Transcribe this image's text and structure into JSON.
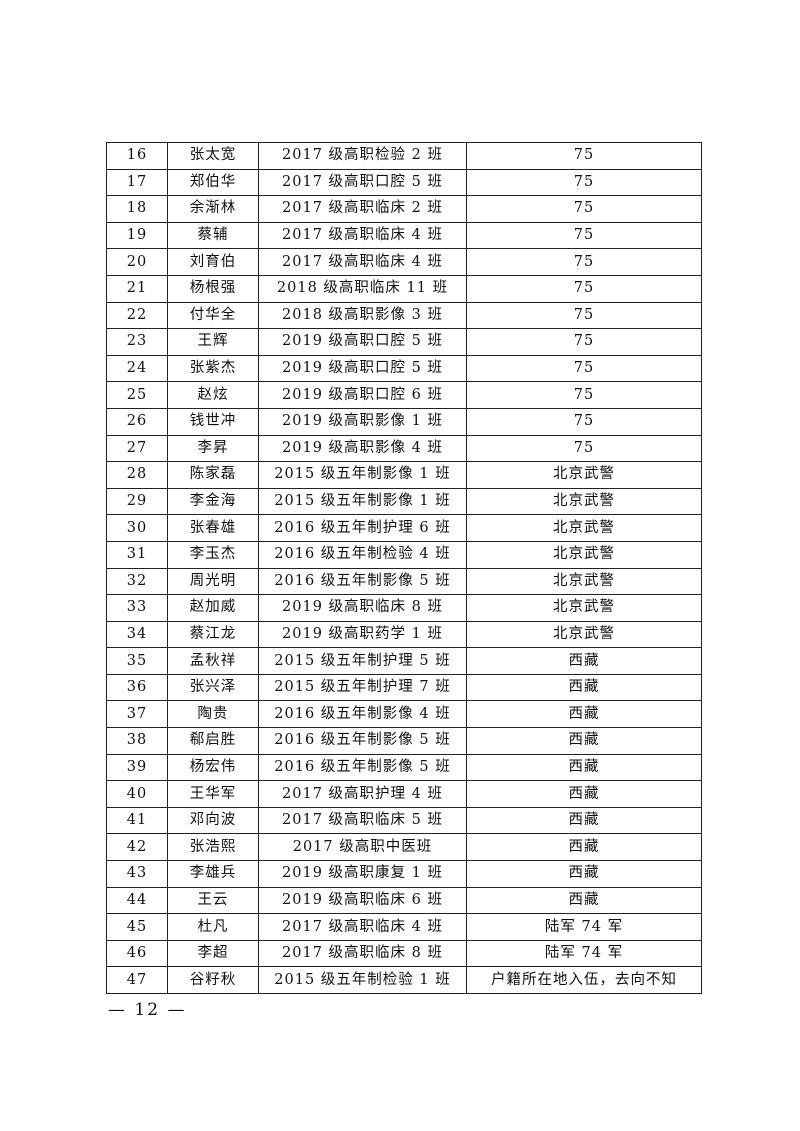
{
  "table": {
    "rows": [
      [
        "16",
        "张太宽",
        "2017 级高职检验 2 班",
        "75"
      ],
      [
        "17",
        "郑伯华",
        "2017 级高职口腔 5 班",
        "75"
      ],
      [
        "18",
        "余渐林",
        "2017 级高职临床 2 班",
        "75"
      ],
      [
        "19",
        "蔡辅",
        "2017 级高职临床 4 班",
        "75"
      ],
      [
        "20",
        "刘育伯",
        "2017 级高职临床 4 班",
        "75"
      ],
      [
        "21",
        "杨根强",
        "2018 级高职临床 11 班",
        "75"
      ],
      [
        "22",
        "付华全",
        "2018 级高职影像 3 班",
        "75"
      ],
      [
        "23",
        "王辉",
        "2019 级高职口腔 5 班",
        "75"
      ],
      [
        "24",
        "张紫杰",
        "2019 级高职口腔 5 班",
        "75"
      ],
      [
        "25",
        "赵炫",
        "2019 级高职口腔 6 班",
        "75"
      ],
      [
        "26",
        "钱世冲",
        "2019 级高职影像 1 班",
        "75"
      ],
      [
        "27",
        "李昇",
        "2019 级高职影像 4 班",
        "75"
      ],
      [
        "28",
        "陈家磊",
        "2015 级五年制影像 1 班",
        "北京武警"
      ],
      [
        "29",
        "李金海",
        "2015 级五年制影像 1 班",
        "北京武警"
      ],
      [
        "30",
        "张春雄",
        "2016 级五年制护理 6 班",
        "北京武警"
      ],
      [
        "31",
        "李玉杰",
        "2016 级五年制检验 4 班",
        "北京武警"
      ],
      [
        "32",
        "周光明",
        "2016 级五年制影像 5 班",
        "北京武警"
      ],
      [
        "33",
        "赵加威",
        "2019 级高职临床 8 班",
        "北京武警"
      ],
      [
        "34",
        "蔡江龙",
        "2019 级高职药学 1 班",
        "北京武警"
      ],
      [
        "35",
        "孟秋祥",
        "2015 级五年制护理 5 班",
        "西藏"
      ],
      [
        "36",
        "张兴泽",
        "2015 级五年制护理 7 班",
        "西藏"
      ],
      [
        "37",
        "陶贵",
        "2016 级五年制影像 4 班",
        "西藏"
      ],
      [
        "38",
        "郗启胜",
        "2016 级五年制影像 5 班",
        "西藏"
      ],
      [
        "39",
        "杨宏伟",
        "2016 级五年制影像 5 班",
        "西藏"
      ],
      [
        "40",
        "王华军",
        "2017 级高职护理 4 班",
        "西藏"
      ],
      [
        "41",
        "邓向波",
        "2017 级高职临床 5 班",
        "西藏"
      ],
      [
        "42",
        "张浩熙",
        "2017 级高职中医班",
        "西藏"
      ],
      [
        "43",
        "李雄兵",
        "2019 级高职康复 1 班",
        "西藏"
      ],
      [
        "44",
        "王云",
        "2019 级高职临床 6 班",
        "西藏"
      ],
      [
        "45",
        "杜凡",
        "2017 级高职临床 4 班",
        "陆军 74 军"
      ],
      [
        "46",
        "李超",
        "2017 级高职临床 8 班",
        "陆军 74 军"
      ],
      [
        "47",
        "谷籽秋",
        "2015 级五年制检验 1 班",
        "户籍所在地入伍，去向不知"
      ]
    ]
  },
  "footer": {
    "page_number": "— 12 —"
  }
}
